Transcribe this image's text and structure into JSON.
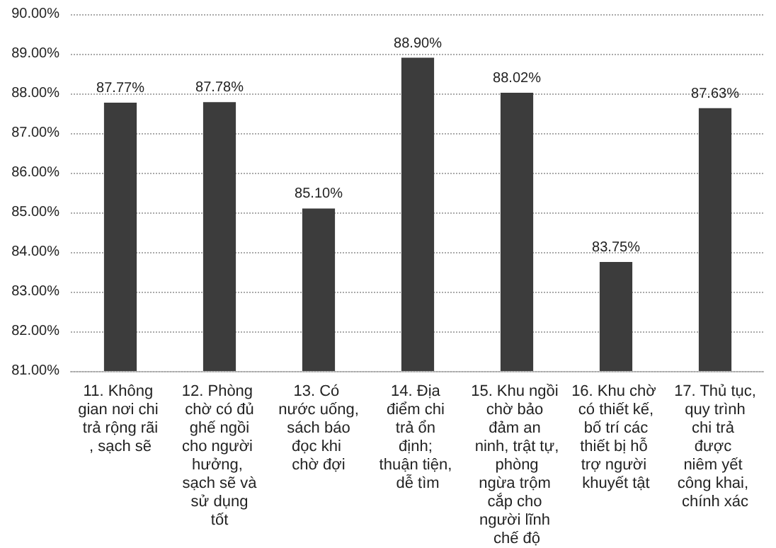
{
  "chart_data": {
    "type": "bar",
    "categories": [
      "11. Không gian nơi chi trả rộng rãi, sạch sẽ",
      "12. Phòng chờ có đủ ghế ngồi cho người hưởng, sạch sẽ và sử dụng tốt",
      "13. Có nước uống, sách báo đọc khi chờ đợi",
      "14. Địa điểm chi trả ổn định; thuận tiện, dễ tìm",
      "15. Khu ngồi chờ bảo đảm an ninh, trật tự, phòng ngừa trộm cắp cho người lĩnh chế độ",
      "16. Khu chờ có thiết kế, bố trí các thiết bị hỗ trợ người khuyết tật",
      "17. Thủ tục, quy trình chi trả được niêm yết công khai, chính xác"
    ],
    "values": [
      87.77,
      87.78,
      85.1,
      88.9,
      88.02,
      83.75,
      87.63
    ],
    "value_labels": [
      "87.77%",
      "87.78%",
      "85.10%",
      "88.90%",
      "88.02%",
      "83.75%",
      "87.63%"
    ],
    "color": "#3c3c3c",
    "ylim": [
      81,
      90
    ],
    "yticks": [
      {
        "value": 81,
        "label": "81.00%"
      },
      {
        "value": 82,
        "label": "82.00%"
      },
      {
        "value": 83,
        "label": "83.00%"
      },
      {
        "value": 84,
        "label": "84.00%"
      },
      {
        "value": 85,
        "label": "85.00%"
      },
      {
        "value": 86,
        "label": "86.00%"
      },
      {
        "value": 87,
        "label": "87.00%"
      },
      {
        "value": 88,
        "label": "88.00%"
      },
      {
        "value": 89,
        "label": "89.00%"
      },
      {
        "value": 90,
        "label": "90.00%"
      }
    ],
    "grid": "y"
  }
}
